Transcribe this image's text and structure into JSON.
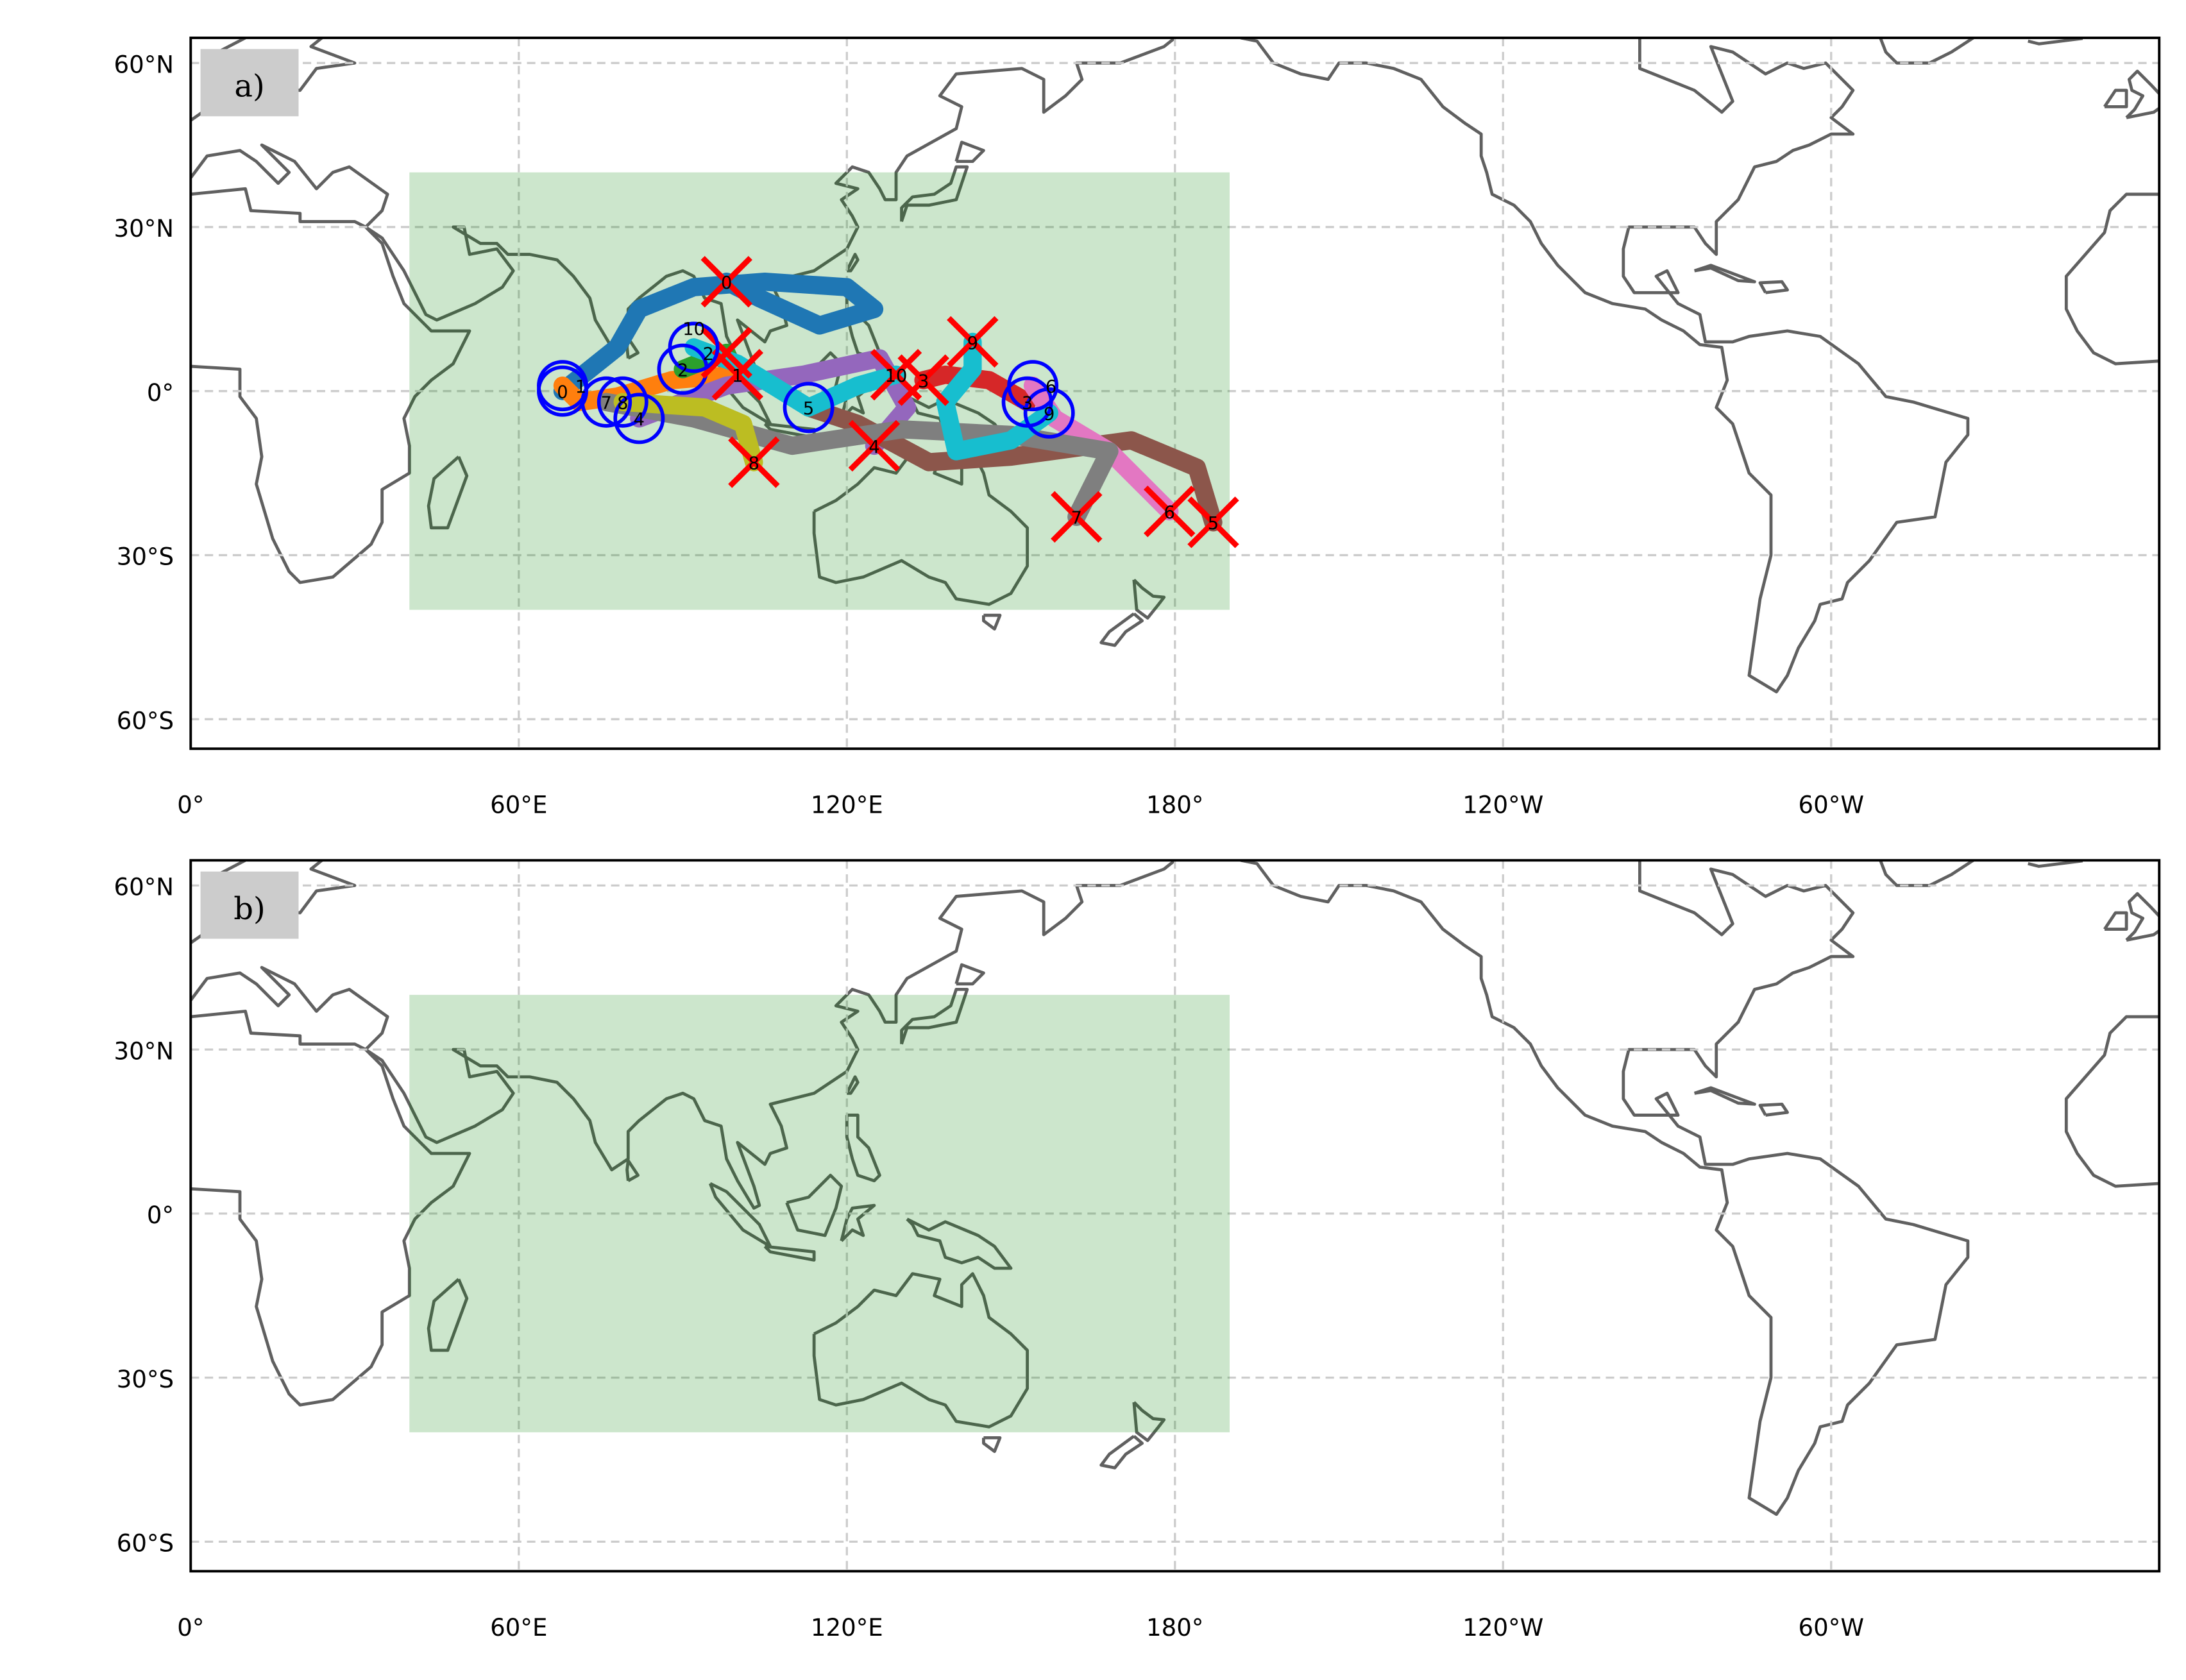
{
  "figure": {
    "panels": [
      {
        "label": "a)",
        "show_tracks": true
      },
      {
        "label": "b)",
        "show_tracks": false
      }
    ],
    "x_ticks": [
      {
        "lon": 0,
        "label": "0°"
      },
      {
        "lon": 60,
        "label": "60°E"
      },
      {
        "lon": 120,
        "label": "120°E"
      },
      {
        "lon": 180,
        "label": "180°"
      },
      {
        "lon": 240,
        "label": "120°W"
      },
      {
        "lon": 300,
        "label": "60°W"
      }
    ],
    "y_ticks": [
      {
        "lat": 60,
        "label": "60°N"
      },
      {
        "lat": 30,
        "label": "30°N"
      },
      {
        "lat": 0,
        "label": "0°"
      },
      {
        "lat": -30,
        "label": "30°S"
      },
      {
        "lat": -60,
        "label": "60°S"
      }
    ],
    "extent": {
      "lon": [
        0,
        360
      ],
      "lat": [
        -65.4,
        64.6
      ]
    },
    "region_box": {
      "lon": [
        40,
        190
      ],
      "lat": [
        -40,
        40
      ],
      "color": "#008000",
      "alpha": 0.2
    },
    "colors": {
      "coastline": "#606060",
      "start_marker": "#0000ff",
      "end_marker": "#ff0000",
      "grid": "#cccccc",
      "panel_label_bg": "#cccccc"
    }
  },
  "chart_data": {
    "type": "map-tracks",
    "storms": [
      {
        "id": "0",
        "color": "#1f77b4",
        "track": [
          [
            68,
            0
          ],
          [
            78,
            8
          ],
          [
            82,
            15
          ],
          [
            92,
            19
          ],
          [
            105,
            20
          ],
          [
            120,
            19
          ],
          [
            125,
            15
          ],
          [
            115,
            12
          ],
          [
            104,
            17
          ],
          [
            98,
            20
          ]
        ],
        "start_label": "0",
        "end_label": "0"
      },
      {
        "id": "1",
        "color": "#ff7f0e",
        "track": [
          [
            68,
            1
          ],
          [
            71,
            -2
          ],
          [
            78,
            -1
          ],
          [
            88,
            2
          ],
          [
            100,
            3
          ]
        ],
        "start_label": "1",
        "end_label": "1"
      },
      {
        "id": "2",
        "color": "#2ca02c",
        "track": [
          [
            90,
            4
          ],
          [
            95,
            6
          ],
          [
            98,
            7
          ]
        ],
        "start_label": "2",
        "end_label": "2"
      },
      {
        "id": "3",
        "color": "#d62728",
        "track": [
          [
            153,
            -2
          ],
          [
            146,
            2
          ],
          [
            138,
            3
          ],
          [
            134,
            2
          ]
        ],
        "start_label": "3",
        "end_label": "3"
      },
      {
        "id": "4",
        "color": "#9467bd",
        "track": [
          [
            82,
            -5
          ],
          [
            98,
            1
          ],
          [
            112,
            3
          ],
          [
            126,
            6
          ],
          [
            131,
            -3
          ],
          [
            125,
            -10
          ]
        ],
        "start_label": "4",
        "end_label": "4"
      },
      {
        "id": "5",
        "color": "#8c564b",
        "track": [
          [
            113,
            -3
          ],
          [
            122,
            -6
          ],
          [
            135,
            -13
          ],
          [
            150,
            -12
          ],
          [
            172,
            -9
          ],
          [
            184,
            -14
          ],
          [
            187,
            -24
          ]
        ],
        "start_label": "5",
        "end_label": "5"
      },
      {
        "id": "6",
        "color": "#e377c2",
        "track": [
          [
            154,
            1
          ],
          [
            158,
            -5
          ],
          [
            168,
            -11
          ],
          [
            179,
            -22
          ]
        ],
        "start_label": "6",
        "end_label": "6"
      },
      {
        "id": "7",
        "color": "#7f7f7f",
        "track": [
          [
            76,
            -2
          ],
          [
            92,
            -5
          ],
          [
            110,
            -10
          ],
          [
            130,
            -7
          ],
          [
            150,
            -8
          ],
          [
            168,
            -11
          ],
          [
            162,
            -23
          ]
        ],
        "start_label": "7",
        "end_label": "7"
      },
      {
        "id": "8",
        "color": "#bcbd22",
        "track": [
          [
            79,
            -2
          ],
          [
            94,
            -3
          ],
          [
            101,
            -6
          ],
          [
            103,
            -13
          ]
        ],
        "start_label": "8",
        "end_label": "8"
      },
      {
        "id": "9",
        "color": "#17becf",
        "track": [
          [
            157,
            -4
          ],
          [
            150,
            -9
          ],
          [
            140,
            -11
          ],
          [
            138,
            -2
          ],
          [
            143,
            4
          ],
          [
            143,
            9
          ]
        ],
        "start_label": "9",
        "end_label": "9"
      },
      {
        "id": "10",
        "color": "#17becf",
        "track": [
          [
            92,
            8
          ],
          [
            100,
            5
          ],
          [
            113,
            -3
          ],
          [
            122,
            1
          ],
          [
            129,
            3
          ]
        ],
        "start_label": "10",
        "end_label": "10"
      }
    ]
  }
}
